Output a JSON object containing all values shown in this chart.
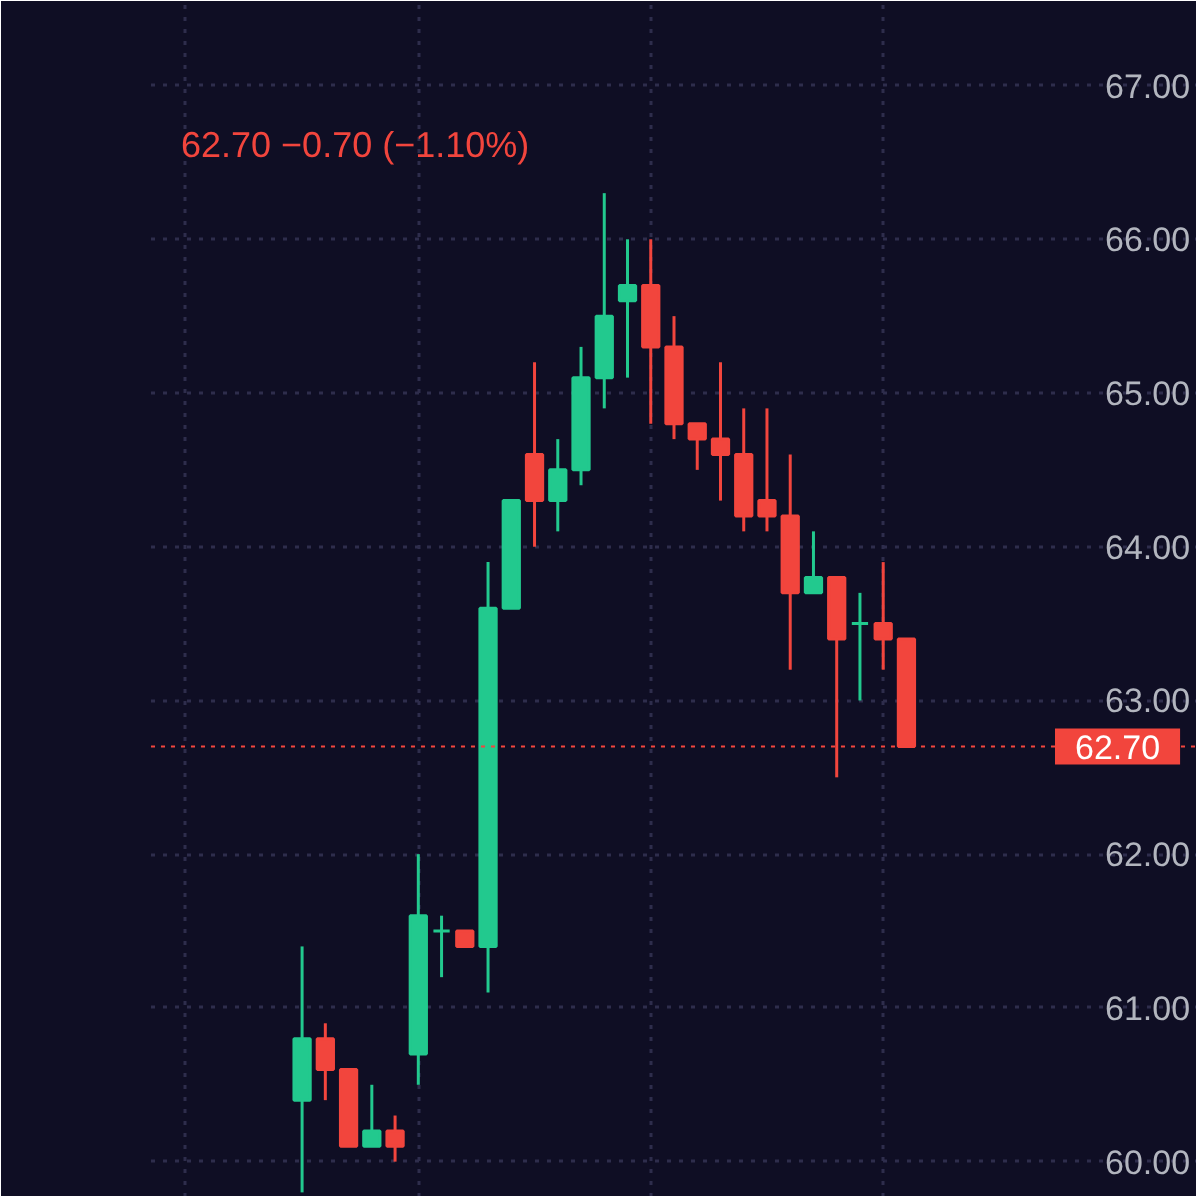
{
  "chart_data": {
    "type": "candlestick",
    "annotations": [
      "62.70 −0.70 (−1.10%)"
    ],
    "categories": [
      null,
      null,
      null,
      null,
      null,
      null,
      null,
      null,
      null,
      null,
      null,
      null,
      null,
      null,
      null,
      null,
      null,
      null,
      null,
      null,
      null,
      null,
      null,
      null,
      null,
      null,
      null,
      null,
      null,
      null,
      null,
      null,
      null,
      null,
      null,
      null,
      null,
      null,
      null,
      null,
      null,
      null,
      null,
      null,
      null
    ],
    "ohlc": [
      null,
      null,
      null,
      null,
      null,
      null,
      [
        60.4,
        61.4,
        59.8,
        60.8
      ],
      [
        60.8,
        60.9,
        60.4,
        60.6
      ],
      [
        60.6,
        60.6,
        60.1,
        60.1
      ],
      [
        60.1,
        60.5,
        60.1,
        60.2
      ],
      [
        60.2,
        60.3,
        60.0,
        60.1
      ],
      [
        60.7,
        62.0,
        60.5,
        61.6
      ],
      [
        61.5,
        61.6,
        61.2,
        61.5
      ],
      [
        61.5,
        61.5,
        61.4,
        61.4
      ],
      [
        61.4,
        63.9,
        61.1,
        63.6
      ],
      [
        63.6,
        64.3,
        63.6,
        64.3
      ],
      [
        64.6,
        65.2,
        64.0,
        64.3
      ],
      [
        64.3,
        64.7,
        64.1,
        64.5
      ],
      [
        64.5,
        65.3,
        64.4,
        65.1
      ],
      [
        65.1,
        66.3,
        64.9,
        65.5
      ],
      [
        65.6,
        66.0,
        65.1,
        65.7
      ],
      [
        65.7,
        66.0,
        64.8,
        65.3
      ],
      [
        65.3,
        65.5,
        64.7,
        64.8
      ],
      [
        64.8,
        64.8,
        64.5,
        64.7
      ],
      [
        64.7,
        65.2,
        64.3,
        64.6
      ],
      [
        64.6,
        64.9,
        64.1,
        64.2
      ],
      [
        64.3,
        64.9,
        64.1,
        64.2
      ],
      [
        64.2,
        64.6,
        63.2,
        63.7
      ],
      [
        63.7,
        64.1,
        63.7,
        63.8
      ],
      [
        63.8,
        63.8,
        62.5,
        63.4
      ],
      [
        63.5,
        63.7,
        63.0,
        63.5
      ],
      [
        63.5,
        63.9,
        63.2,
        63.4
      ],
      [
        63.4,
        63.4,
        62.7,
        62.7
      ],
      null,
      null,
      null,
      null,
      null,
      null,
      null,
      null,
      null,
      null,
      null,
      null
    ],
    "colors": [
      null,
      null,
      null,
      null,
      null,
      null,
      "#22c98e",
      "#f2453d",
      "#f2453d",
      "#22c98e",
      "#f2453d",
      "#22c98e",
      "#22c98e",
      "#f2453d",
      "#22c98e",
      "#22c98e",
      "#f2453d",
      "#22c98e",
      "#22c98e",
      "#22c98e",
      "#22c98e",
      "#f2453d",
      "#f2453d",
      "#f2453d",
      "#f2453d",
      "#f2453d",
      "#f2453d",
      "#f2453d",
      "#22c98e",
      "#f2453d",
      "#22c98e",
      "#f2453d",
      "#f2453d",
      null,
      null,
      null,
      null,
      null,
      null,
      null,
      null,
      null,
      null,
      null,
      null
    ],
    "ylim": [
      59.77,
      67.55
    ],
    "yticks": [
      {
        "value": 60,
        "label": "60.00"
      },
      {
        "value": 61,
        "label": "61.00"
      },
      {
        "value": 62,
        "label": "62.00"
      },
      {
        "value": 63,
        "label": "63.00"
      },
      {
        "value": 64,
        "label": "64.00"
      },
      {
        "value": 65,
        "label": "65.00"
      },
      {
        "value": 66,
        "label": "66.00"
      },
      {
        "value": 67,
        "label": "67.00"
      }
    ],
    "tick_labels": "y",
    "grid": true,
    "ref_lines": [
      {
        "axis": "y",
        "value": 62.7,
        "label": "62.70",
        "color": "#f2453d",
        "line_style": "dotted"
      }
    ]
  }
}
